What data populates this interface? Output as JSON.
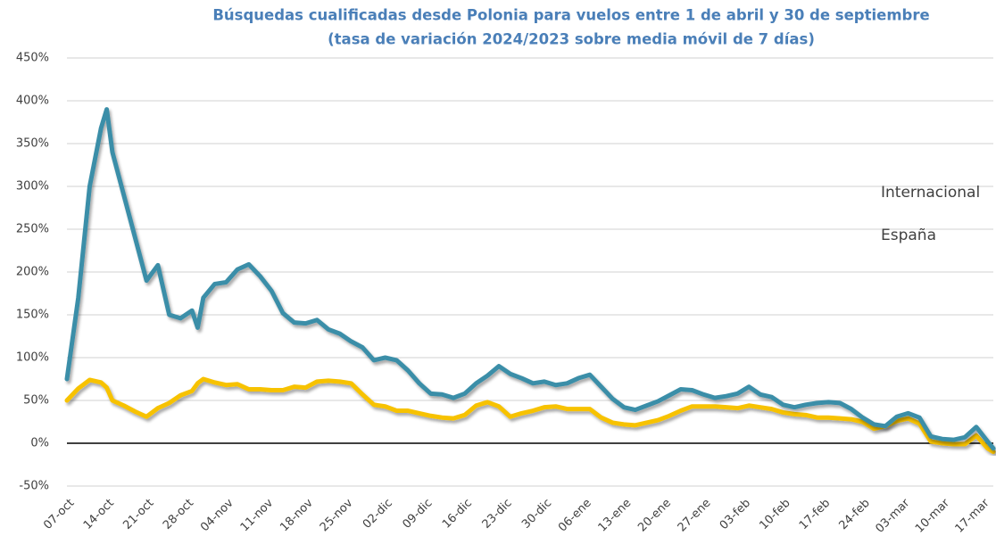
{
  "chart_data": {
    "type": "line",
    "title": "Búsquedas cualificadas desde Polonia para vuelos entre 1 de abril y 30 de septiembre",
    "subtitle": "(tasa de variación 2024/2023 sobre media móvil de 7 días)",
    "x": [
      0,
      2,
      4,
      6,
      7,
      8,
      10,
      12,
      14,
      16,
      18,
      20,
      22,
      23,
      24,
      26,
      28,
      30,
      32,
      34,
      36,
      38,
      40,
      42,
      44,
      46,
      48,
      50,
      52,
      54,
      56,
      58,
      60,
      62,
      64,
      66,
      68,
      70,
      72,
      74,
      76,
      78,
      80,
      82,
      84,
      86,
      88,
      90,
      92,
      94,
      96,
      98,
      100,
      102,
      104,
      106,
      108,
      110,
      112,
      114,
      116,
      118,
      120,
      122,
      124,
      126,
      128,
      130,
      132,
      134,
      136,
      138,
      140,
      142,
      144,
      146,
      148,
      150,
      152,
      154,
      156,
      158,
      160,
      162,
      163
    ],
    "series": [
      {
        "name": "Internacional",
        "color": "#f7c200",
        "values": [
          50,
          64,
          74,
          71,
          65,
          50,
          44,
          37,
          31,
          41,
          47,
          56,
          61,
          70,
          75,
          71,
          68,
          69,
          63,
          63,
          62,
          62,
          66,
          65,
          72,
          73,
          72,
          70,
          57,
          45,
          43,
          38,
          38,
          35,
          32,
          30,
          29,
          33,
          44,
          48,
          43,
          31,
          35,
          38,
          42,
          43,
          40,
          40,
          40,
          30,
          24,
          22,
          21,
          24,
          27,
          32,
          38,
          43,
          43,
          43,
          42,
          41,
          44,
          42,
          40,
          36,
          34,
          33,
          30,
          30,
          29,
          28,
          25,
          17,
          20,
          26,
          29,
          23,
          2,
          0,
          -1,
          -1,
          9,
          -6,
          -10
        ]
      },
      {
        "name": "España",
        "color": "#3b8ea8",
        "values": [
          75,
          170,
          300,
          368,
          390,
          340,
          290,
          240,
          190,
          208,
          150,
          146,
          155,
          135,
          170,
          186,
          188,
          203,
          209,
          195,
          178,
          152,
          141,
          140,
          144,
          133,
          128,
          119,
          112,
          97,
          100,
          97,
          85,
          70,
          58,
          57,
          53,
          58,
          70,
          79,
          90,
          81,
          76,
          70,
          72,
          68,
          70,
          76,
          80,
          66,
          52,
          42,
          39,
          44,
          49,
          56,
          63,
          62,
          57,
          53,
          55,
          58,
          66,
          57,
          54,
          45,
          42,
          45,
          47,
          48,
          47,
          40,
          30,
          22,
          20,
          31,
          35,
          30,
          8,
          5,
          4,
          7,
          19,
          2,
          -6
        ]
      }
    ],
    "xlim": [
      0,
      163
    ],
    "xticks": [
      {
        "value": 0,
        "label": "07-oct"
      },
      {
        "value": 7,
        "label": "14-oct"
      },
      {
        "value": 14,
        "label": "21-oct"
      },
      {
        "value": 21,
        "label": "28-oct"
      },
      {
        "value": 28,
        "label": "04-nov"
      },
      {
        "value": 35,
        "label": "11-nov"
      },
      {
        "value": 42,
        "label": "18-nov"
      },
      {
        "value": 49,
        "label": "25-nov"
      },
      {
        "value": 56,
        "label": "02-dic"
      },
      {
        "value": 63,
        "label": "09-dic"
      },
      {
        "value": 70,
        "label": "16-dic"
      },
      {
        "value": 77,
        "label": "23-dic"
      },
      {
        "value": 84,
        "label": "30-dic"
      },
      {
        "value": 91,
        "label": "06-ene"
      },
      {
        "value": 98,
        "label": "13-ene"
      },
      {
        "value": 105,
        "label": "20-ene"
      },
      {
        "value": 112,
        "label": "27-ene"
      },
      {
        "value": 119,
        "label": "03-feb"
      },
      {
        "value": 126,
        "label": "10-feb"
      },
      {
        "value": 133,
        "label": "17-feb"
      },
      {
        "value": 140,
        "label": "24-feb"
      },
      {
        "value": 147,
        "label": "03-mar"
      },
      {
        "value": 154,
        "label": "10-mar"
      },
      {
        "value": 161,
        "label": "17-mar"
      }
    ],
    "ylim": [
      -50,
      450
    ],
    "yticks": [
      {
        "value": -50,
        "label": "-50%"
      },
      {
        "value": 0,
        "label": "0%"
      },
      {
        "value": 50,
        "label": "50%"
      },
      {
        "value": 100,
        "label": "100%"
      },
      {
        "value": 150,
        "label": "150%"
      },
      {
        "value": 200,
        "label": "200%"
      },
      {
        "value": 250,
        "label": "250%"
      },
      {
        "value": 300,
        "label": "300%"
      },
      {
        "value": 350,
        "label": "350%"
      },
      {
        "value": 400,
        "label": "400%"
      },
      {
        "value": 450,
        "label": "450%"
      }
    ],
    "grid": true,
    "legend": "right"
  }
}
